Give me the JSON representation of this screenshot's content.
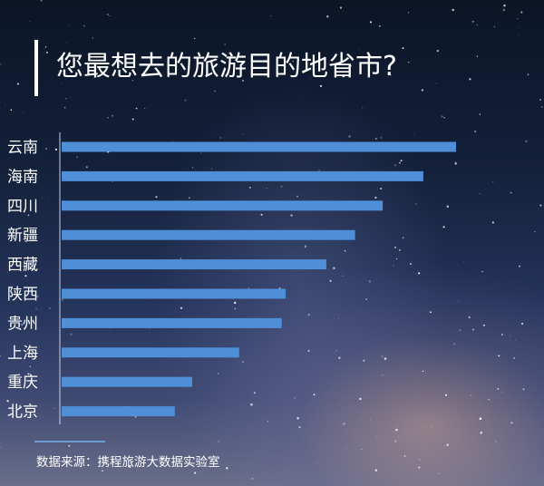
{
  "title": "您最想去的旅游目的地省市?",
  "source": "数据来源：携程旅游大数据实验室",
  "colors": {
    "bar": "#4f8fd8",
    "axis": "#c7d3e6",
    "text": "#ffffff"
  },
  "chart_data": {
    "type": "bar",
    "orientation": "horizontal",
    "title": "您最想去的旅游目的地省市?",
    "categories": [
      "云南",
      "海南",
      "四川",
      "新疆",
      "西藏",
      "陕西",
      "贵州",
      "上海",
      "重庆",
      "北京"
    ],
    "values": [
      100,
      91.7,
      81.4,
      74.4,
      67.1,
      56.8,
      55.8,
      45.0,
      33.1,
      28.7
    ],
    "xlim": [
      0,
      100
    ],
    "grid": false,
    "legend": "none",
    "axis_labels_shown": false
  }
}
